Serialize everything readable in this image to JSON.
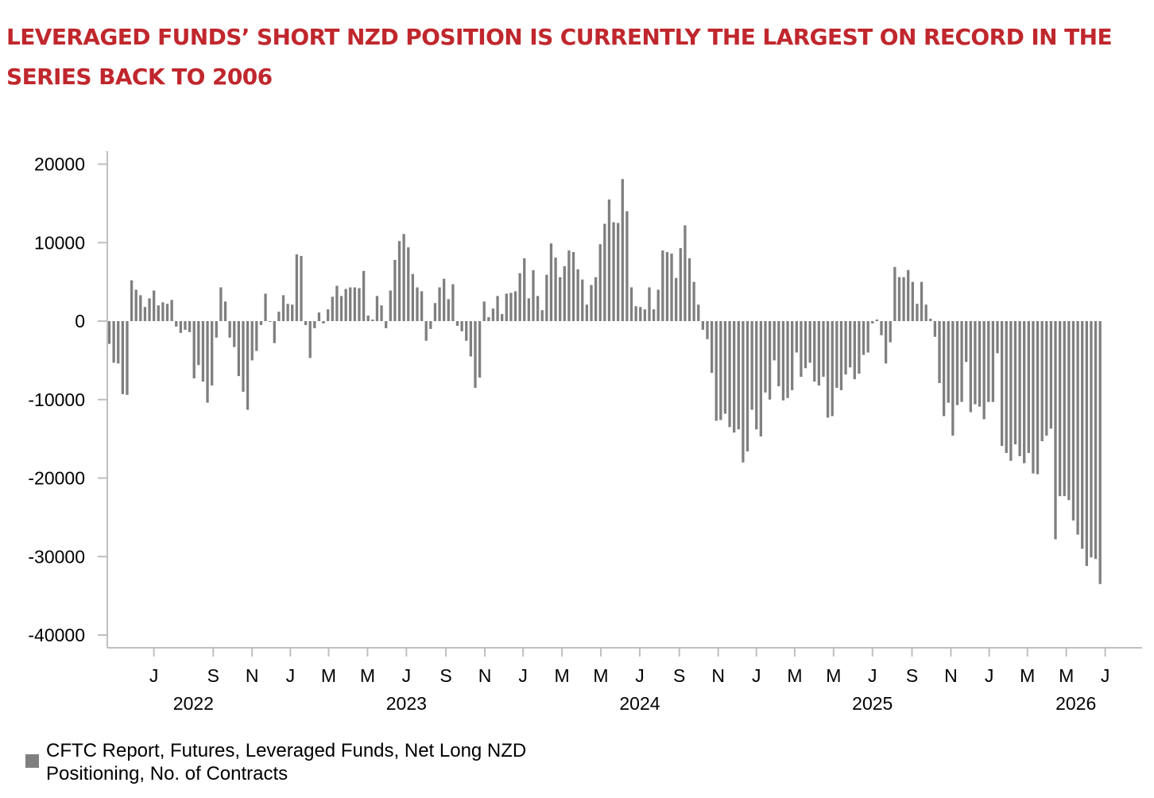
{
  "title": "LEVERAGED FUNDS’ SHORT NZD POSITION IS CURRENTLY THE LARGEST ON RECORD IN THE SERIES BACK TO 2006",
  "colors": {
    "title": "#c0272d",
    "bars": "#7f7f7f",
    "axis": "#bfbfbf"
  },
  "chart_data": {
    "type": "bar",
    "title": "",
    "xlabel": "",
    "ylabel": "",
    "ylim": [
      -40000,
      20000
    ],
    "y_ticks": [
      20000,
      10000,
      0,
      -10000,
      -20000,
      -30000,
      -40000
    ],
    "x_range": [
      "2022-03-21",
      "2026-08-20"
    ],
    "x_ticks": [
      {
        "label": "J",
        "date": "2022-05-30"
      },
      {
        "label": "S",
        "date": "2022-08-31"
      },
      {
        "label": "N",
        "date": "2022-10-31"
      },
      {
        "label": "J",
        "date": "2022-12-30"
      },
      {
        "label": "M",
        "date": "2023-02-28"
      },
      {
        "label": "M",
        "date": "2023-04-30"
      },
      {
        "label": "J",
        "date": "2023-06-30"
      },
      {
        "label": "S",
        "date": "2023-08-31"
      },
      {
        "label": "N",
        "date": "2023-10-31"
      },
      {
        "label": "J",
        "date": "2023-12-30"
      },
      {
        "label": "M",
        "date": "2024-02-29"
      },
      {
        "label": "M",
        "date": "2024-04-30"
      },
      {
        "label": "J",
        "date": "2024-06-30"
      },
      {
        "label": "S",
        "date": "2024-08-31"
      },
      {
        "label": "N",
        "date": "2024-10-31"
      },
      {
        "label": "J",
        "date": "2024-12-30"
      },
      {
        "label": "M",
        "date": "2025-02-28"
      },
      {
        "label": "M",
        "date": "2025-04-30"
      },
      {
        "label": "J",
        "date": "2025-06-30"
      },
      {
        "label": "S",
        "date": "2025-08-31"
      },
      {
        "label": "N",
        "date": "2025-10-31"
      },
      {
        "label": "J",
        "date": "2025-12-30"
      },
      {
        "label": "M",
        "date": "2026-02-28"
      },
      {
        "label": "M",
        "date": "2026-04-30"
      },
      {
        "label": "J",
        "date": "2026-06-30"
      }
    ],
    "year_labels": [
      {
        "label": "2022",
        "date": "2022-07-31"
      },
      {
        "label": "2023",
        "date": "2023-06-30"
      },
      {
        "label": "2024",
        "date": "2024-06-30"
      },
      {
        "label": "2025",
        "date": "2025-06-30"
      },
      {
        "label": "2026",
        "date": "2026-05-15"
      }
    ],
    "series": [
      {
        "name": "CFTC Report, Futures, Leveraged Funds, Net Long NZD Positioning, No. of Contracts",
        "start_date": "2022-03-21",
        "interval_days": 7,
        "values": [
          -2900,
          -5300,
          -5400,
          -9300,
          -9400,
          5200,
          4000,
          3300,
          1800,
          2900,
          3900,
          2000,
          2400,
          2200,
          2700,
          -700,
          -1500,
          -1100,
          -1400,
          -7300,
          -5600,
          -7700,
          -10400,
          -8200,
          -2100,
          4300,
          2500,
          -2100,
          -3300,
          -7000,
          -9000,
          -11300,
          -5000,
          -3800,
          -500,
          3500,
          -100,
          -2800,
          1200,
          3300,
          2200,
          2100,
          8500,
          8300,
          -500,
          -4700,
          -900,
          1100,
          -300,
          1500,
          3100,
          4500,
          3200,
          4100,
          4300,
          4300,
          4200,
          6400,
          700,
          200,
          3200,
          2000,
          -900,
          3900,
          7800,
          10200,
          11100,
          9400,
          6000,
          4300,
          3800,
          -2500,
          -1000,
          2300,
          4300,
          5400,
          2800,
          4700,
          -600,
          -1300,
          -2500,
          -4500,
          -8500,
          -7200,
          2500,
          500,
          1600,
          3200,
          900,
          3500,
          3600,
          3800,
          6100,
          8000,
          2900,
          6500,
          3200,
          1400,
          5900,
          9900,
          8100,
          5600,
          7000,
          9000,
          8800,
          6600,
          5300,
          2100,
          4600,
          5600,
          9800,
          12400,
          15500,
          12600,
          12500,
          18100,
          14000,
          4300,
          1900,
          1800,
          1500,
          4300,
          1500,
          4000,
          9000,
          8800,
          8600,
          5500,
          9300,
          12200,
          8000,
          5000,
          2100,
          -1100,
          -2300,
          -6600,
          -12700,
          -12600,
          -11800,
          -13500,
          -14200,
          -13800,
          -18000,
          -16600,
          -11300,
          -13800,
          -14700,
          -9100,
          -10000,
          -5000,
          -8300,
          -10100,
          -9800,
          -8800,
          -4000,
          -7100,
          -6000,
          -5300,
          -7700,
          -8200,
          -7100,
          -12300,
          -12100,
          -8500,
          -8800,
          -6800,
          -5900,
          -7400,
          -6700,
          -4300,
          -4000,
          -300,
          200,
          -1800,
          -5400,
          -2700,
          6900,
          5600,
          5600,
          6500,
          5000,
          2200,
          5000,
          2100,
          300,
          -2000,
          -7900,
          -12100,
          -10400,
          -14600,
          -10700,
          -10300,
          -5200,
          -11600,
          -10600,
          -10900,
          -12500,
          -10300,
          -10300,
          -4100,
          -15900,
          -16800,
          -17800,
          -15700,
          -17200,
          -18100,
          -16800,
          -19400,
          -19500,
          -15300,
          -14600,
          -13700,
          -27800,
          -22300,
          -22300,
          -22800,
          -25400,
          -27200,
          -29000,
          -31200,
          -30100,
          -30300,
          -33500
        ]
      }
    ],
    "grid": false,
    "legend": "bottom-left"
  }
}
